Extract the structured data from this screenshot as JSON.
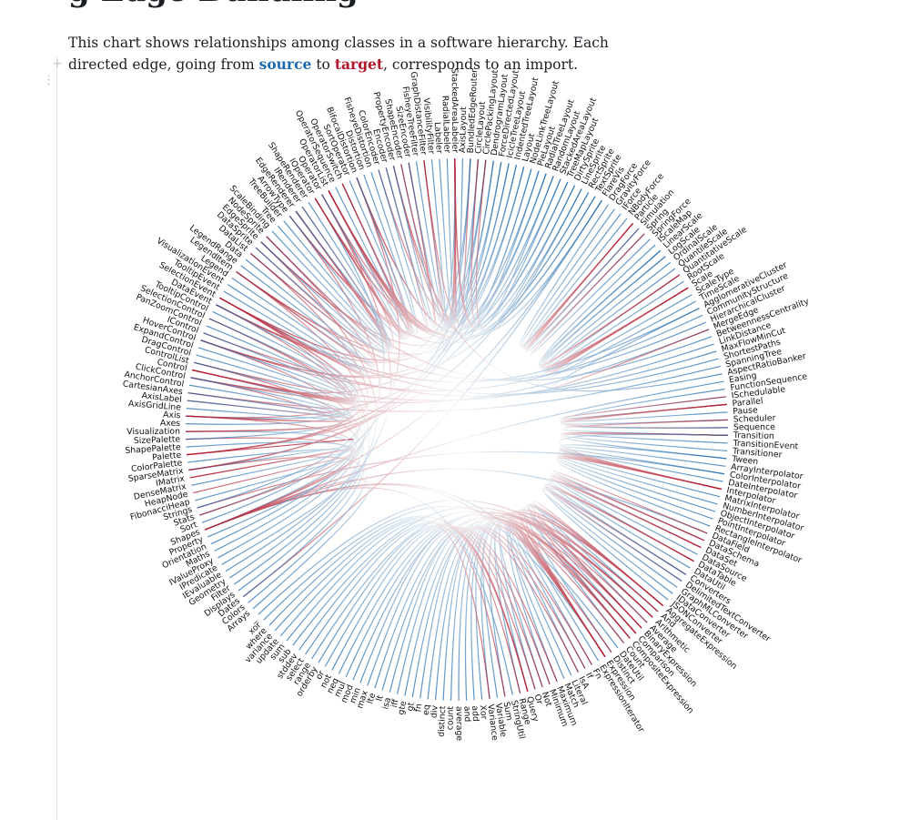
{
  "notebook": {
    "title_fragment": "g Edge Bundling",
    "intro_before": "This chart shows relationships among classes in a software hierarchy. Each directed edge, going from ",
    "source_word": "source",
    "intro_middle": " to ",
    "target_word": "target",
    "intro_after": ", corresponds to an import.",
    "add_cell_glyph": "+",
    "drag_glyph": "⋮"
  },
  "colors": {
    "source": "#1f6bb0",
    "target": "#b2182b",
    "text": "#1b1e23"
  },
  "icons": {
    "add": "plus-icon",
    "drag": "drag-handle-icon"
  },
  "labels": [
    "BundledEdgeRouter",
    "CircleLayout",
    "CirclePackingLayout",
    "DendrogramLayout",
    "ForceDirectedLayout",
    "IcicleTreeLayout",
    "IndentedTreeLayout",
    "Layout",
    "NodeLinkTreeLayout",
    "PieLayout",
    "RadialTreeLayout",
    "RandomLayout",
    "StackedAreaLayout",
    "TreeMapLayout",
    "DirtySprite",
    "LineSprite",
    "RectSprite",
    "TextSprite",
    "FlareVis",
    "DragForce",
    "GravityForce",
    "IForce",
    "NBodyForce",
    "Particle",
    "Simulation",
    "Spring",
    "SpringForce",
    "IScaleMap",
    "LinearScale",
    "LogScale",
    "OrdinalScale",
    "QuantileScale",
    "QuantitativeScale",
    "RootScale",
    "Scale",
    "ScaleType",
    "TimeScale",
    "AgglomerativeCluster",
    "CommunityStructure",
    "HierarchicalCluster",
    "MergeEdge",
    "BetweennessCentrality",
    "LinkDistance",
    "MaxFlowMinCut",
    "ShortestPaths",
    "SpanningTree",
    "AspectRatioBanker",
    "Easing",
    "FunctionSequence",
    "ISchedulable",
    "Parallel",
    "Pause",
    "Scheduler",
    "Sequence",
    "Transition",
    "TransitionEvent",
    "Transitioner",
    "Tween",
    "ArrayInterpolator",
    "ColorInterpolator",
    "DateInterpolator",
    "Interpolator",
    "MatrixInterpolator",
    "NumberInterpolator",
    "ObjectInterpolator",
    "PointInterpolator",
    "RectangleInterpolator",
    "DataField",
    "DataSchema",
    "DataSet",
    "DataSource",
    "DataTable",
    "DataUtil",
    "Converters",
    "DelimitedTextConverter",
    "GraphMLConverter",
    "IDataConverter",
    "JSONConverter",
    "AggregateExpression",
    "And",
    "Arithmetic",
    "Average",
    "BinaryExpression",
    "Comparison",
    "CompositeExpression",
    "Count",
    "DateUtil",
    "Distinct",
    "Expression",
    "ExpressionIterator",
    "Fn",
    "If",
    "IsA",
    "Literal",
    "Match",
    "Maximum",
    "Minimum",
    "Not",
    "Or",
    "Query",
    "Range",
    "StringUtil",
    "Sum",
    "Variable",
    "Variance",
    "Xor",
    "add",
    "and",
    "average",
    "count",
    "distinct",
    "div",
    "eq",
    "fn",
    "gt",
    "gte",
    "iff",
    "isa",
    "lt",
    "lte",
    "max",
    "min",
    "mod",
    "mul",
    "neq",
    "not",
    "or",
    "orderby",
    "range",
    "select",
    "stddev",
    "sub",
    "sum",
    "update",
    "variance",
    "where",
    "xor",
    "_",
    "Arrays",
    "Colors",
    "Dates",
    "Displays",
    "Filter",
    "Geometry",
    "IEvaluable",
    "IPredicate",
    "IValueProxy",
    "Maths",
    "Orientation",
    "Property",
    "Shapes",
    "Sort",
    "Stats",
    "Strings",
    "FibonacciHeap",
    "HeapNode",
    "DenseMatrix",
    "IMatrix",
    "SparseMatrix",
    "ColorPalette",
    "Palette",
    "ShapePalette",
    "SizePalette",
    "Visualization",
    "Axes",
    "Axis",
    "AxisGridLine",
    "AxisLabel",
    "CartesianAxes",
    "AnchorControl",
    "ClickControl",
    "Control",
    "ControlList",
    "DragControl",
    "ExpandControl",
    "HoverControl",
    "IControl",
    "PanZoomControl",
    "SelectionControl",
    "TooltipControl",
    "DataEvent",
    "SelectionEvent",
    "TooltipEvent",
    "VisualizationEvent",
    "Legend",
    "LegendItem",
    "LegendRange",
    "Data",
    "DataList",
    "DataSprite",
    "EdgeSprite",
    "NodeSprite",
    "ScaleBinding",
    "Tree",
    "TreeBuilder",
    "ArrowType",
    "EdgeRenderer",
    "IRenderer",
    "ShapeRenderer",
    "IOperator",
    "Operator",
    "OperatorList",
    "OperatorSequence",
    "OperatorSwitch",
    "SortOperator",
    "BifocalDistortion",
    "Distortion",
    "FisheyeDistortion",
    "ColorEncoder",
    "Encoder",
    "PropertyEncoder",
    "ShapeEncoder",
    "SizeEncoder",
    "FisheyeTreeFilter",
    "GraphDistanceFilter",
    "VisibilityFilter",
    "Labeler",
    "RadialLabeler",
    "StackedAreaLabeler",
    "AxisLayout"
  ],
  "edges": [
    [
      1,
      0
    ],
    [
      3,
      195
    ],
    [
      4,
      180
    ],
    [
      5,
      160
    ],
    [
      6,
      170
    ],
    [
      7,
      200
    ],
    [
      8,
      210
    ],
    [
      9,
      190
    ],
    [
      10,
      175
    ],
    [
      11,
      165
    ],
    [
      12,
      185
    ],
    [
      13,
      205
    ],
    [
      2,
      158
    ],
    [
      0,
      181
    ],
    [
      14,
      205
    ],
    [
      15,
      160
    ],
    [
      16,
      175
    ],
    [
      17,
      195
    ],
    [
      18,
      150
    ],
    [
      18,
      208
    ],
    [
      18,
      140
    ],
    [
      19,
      23
    ],
    [
      20,
      23
    ],
    [
      21,
      24
    ],
    [
      22,
      23
    ],
    [
      25,
      23
    ],
    [
      26,
      25
    ],
    [
      24,
      23
    ],
    [
      28,
      34
    ],
    [
      29,
      34
    ],
    [
      30,
      34
    ],
    [
      31,
      34
    ],
    [
      32,
      34
    ],
    [
      33,
      34
    ],
    [
      36,
      34
    ],
    [
      27,
      34
    ],
    [
      29,
      32
    ],
    [
      28,
      32
    ],
    [
      35,
      34
    ],
    [
      37,
      180
    ],
    [
      38,
      175
    ],
    [
      39,
      185
    ],
    [
      40,
      170
    ],
    [
      41,
      190
    ],
    [
      42,
      172
    ],
    [
      43,
      176
    ],
    [
      44,
      180
    ],
    [
      45,
      168
    ],
    [
      37,
      40
    ],
    [
      46,
      210
    ],
    [
      47,
      150
    ],
    [
      48,
      53
    ],
    [
      49,
      50
    ],
    [
      50,
      49
    ],
    [
      51,
      50
    ],
    [
      52,
      50
    ],
    [
      53,
      50
    ],
    [
      54,
      52
    ],
    [
      55,
      54
    ],
    [
      56,
      54
    ],
    [
      57,
      54
    ],
    [
      54,
      61
    ],
    [
      57,
      61
    ],
    [
      58,
      61
    ],
    [
      59,
      61
    ],
    [
      60,
      61
    ],
    [
      62,
      61
    ],
    [
      63,
      61
    ],
    [
      64,
      61
    ],
    [
      65,
      61
    ],
    [
      66,
      61
    ],
    [
      59,
      153
    ],
    [
      67,
      150
    ],
    [
      68,
      67
    ],
    [
      69,
      68
    ],
    [
      70,
      69
    ],
    [
      71,
      68
    ],
    [
      72,
      69
    ],
    [
      73,
      74
    ],
    [
      74,
      71
    ],
    [
      75,
      71
    ],
    [
      76,
      73
    ],
    [
      77,
      71
    ],
    [
      73,
      69
    ],
    [
      78,
      88
    ],
    [
      79,
      84
    ],
    [
      80,
      82
    ],
    [
      81,
      78
    ],
    [
      82,
      88
    ],
    [
      83,
      82
    ],
    [
      84,
      88
    ],
    [
      85,
      78
    ],
    [
      86,
      150
    ],
    [
      87,
      78
    ],
    [
      88,
      150
    ],
    [
      89,
      88
    ],
    [
      90,
      88
    ],
    [
      91,
      88
    ],
    [
      92,
      88
    ],
    [
      93,
      88
    ],
    [
      94,
      88
    ],
    [
      95,
      78
    ],
    [
      96,
      78
    ],
    [
      97,
      88
    ],
    [
      98,
      84
    ],
    [
      99,
      88
    ],
    [
      100,
      82
    ],
    [
      101,
      150
    ],
    [
      102,
      78
    ],
    [
      103,
      88
    ],
    [
      104,
      78
    ],
    [
      105,
      84
    ],
    [
      106,
      80
    ],
    [
      107,
      79
    ],
    [
      108,
      81
    ],
    [
      109,
      85
    ],
    [
      110,
      87
    ],
    [
      111,
      80
    ],
    [
      112,
      83
    ],
    [
      113,
      90
    ],
    [
      114,
      83
    ],
    [
      115,
      83
    ],
    [
      116,
      91
    ],
    [
      117,
      92
    ],
    [
      118,
      83
    ],
    [
      119,
      83
    ],
    [
      120,
      95
    ],
    [
      121,
      96
    ],
    [
      122,
      80
    ],
    [
      123,
      80
    ],
    [
      124,
      83
    ],
    [
      125,
      97
    ],
    [
      126,
      98
    ],
    [
      127,
      99
    ],
    [
      128,
      82
    ],
    [
      129,
      100
    ],
    [
      130,
      99
    ],
    [
      131,
      80
    ],
    [
      132,
      102
    ],
    [
      133,
      104
    ],
    [
      134,
      99
    ],
    [
      135,
      99
    ],
    [
      136,
      84
    ],
    [
      137,
      79
    ],
    [
      138,
      150
    ],
    [
      139,
      158
    ],
    [
      140,
      170
    ],
    [
      141,
      181
    ],
    [
      142,
      190
    ],
    [
      143,
      200
    ],
    [
      144,
      175
    ],
    [
      145,
      162
    ],
    [
      146,
      180
    ],
    [
      147,
      185
    ],
    [
      148,
      195
    ],
    [
      149,
      165
    ],
    [
      150,
      172
    ],
    [
      151,
      205
    ],
    [
      152,
      178
    ],
    [
      153,
      188
    ],
    [
      154,
      155
    ],
    [
      156,
      157
    ],
    [
      158,
      157
    ],
    [
      159,
      150
    ],
    [
      160,
      160
    ],
    [
      161,
      150
    ],
    [
      162,
      178
    ],
    [
      163,
      152
    ],
    [
      164,
      181
    ],
    [
      165,
      181
    ],
    [
      166,
      167
    ],
    [
      167,
      168
    ],
    [
      168,
      165
    ],
    [
      169,
      165
    ],
    [
      170,
      163
    ],
    [
      171,
      163
    ],
    [
      172,
      171
    ],
    [
      173,
      171
    ],
    [
      174,
      171
    ],
    [
      175,
      171
    ],
    [
      176,
      171
    ],
    [
      177,
      171
    ],
    [
      178,
      171
    ],
    [
      179,
      171
    ],
    [
      180,
      171
    ],
    [
      181,
      191
    ],
    [
      182,
      181
    ],
    [
      183,
      181
    ],
    [
      184,
      181
    ],
    [
      185,
      189
    ],
    [
      186,
      185
    ],
    [
      187,
      185
    ],
    [
      188,
      200
    ],
    [
      189,
      196
    ],
    [
      190,
      196
    ],
    [
      191,
      196
    ],
    [
      192,
      197
    ],
    [
      193,
      196
    ],
    [
      194,
      196
    ],
    [
      195,
      196
    ],
    [
      196,
      205
    ],
    [
      197,
      191
    ],
    [
      198,
      188
    ],
    [
      199,
      160
    ],
    [
      200,
      199
    ],
    [
      201,
      199
    ],
    [
      202,
      203
    ],
    [
      203,
      199
    ],
    [
      204,
      203
    ],
    [
      205,
      199
    ],
    [
      206,
      203
    ],
    [
      207,
      201
    ],
    [
      208,
      209
    ],
    [
      209,
      212
    ],
    [
      210,
      212
    ],
    [
      211,
      218
    ],
    [
      212,
      218
    ],
    [
      213,
      218
    ],
    [
      214,
      218
    ],
    [
      215,
      214
    ],
    [
      216,
      218
    ],
    [
      217,
      218
    ],
    [
      218,
      201
    ],
    [
      219,
      218
    ],
    [
      220,
      201
    ],
    [
      221,
      201
    ],
    [
      222,
      201
    ],
    [
      223,
      201
    ],
    [
      224,
      201
    ],
    [
      225,
      160
    ],
    [
      226,
      158
    ],
    [
      227,
      181
    ],
    [
      228,
      211
    ],
    [
      229,
      214
    ],
    [
      230,
      201
    ],
    [
      231,
      221
    ],
    [
      232,
      218
    ],
    [
      233,
      201
    ],
    [
      234,
      218
    ],
    [
      235,
      222
    ],
    [
      236,
      199
    ],
    [
      237,
      201
    ]
  ]
}
